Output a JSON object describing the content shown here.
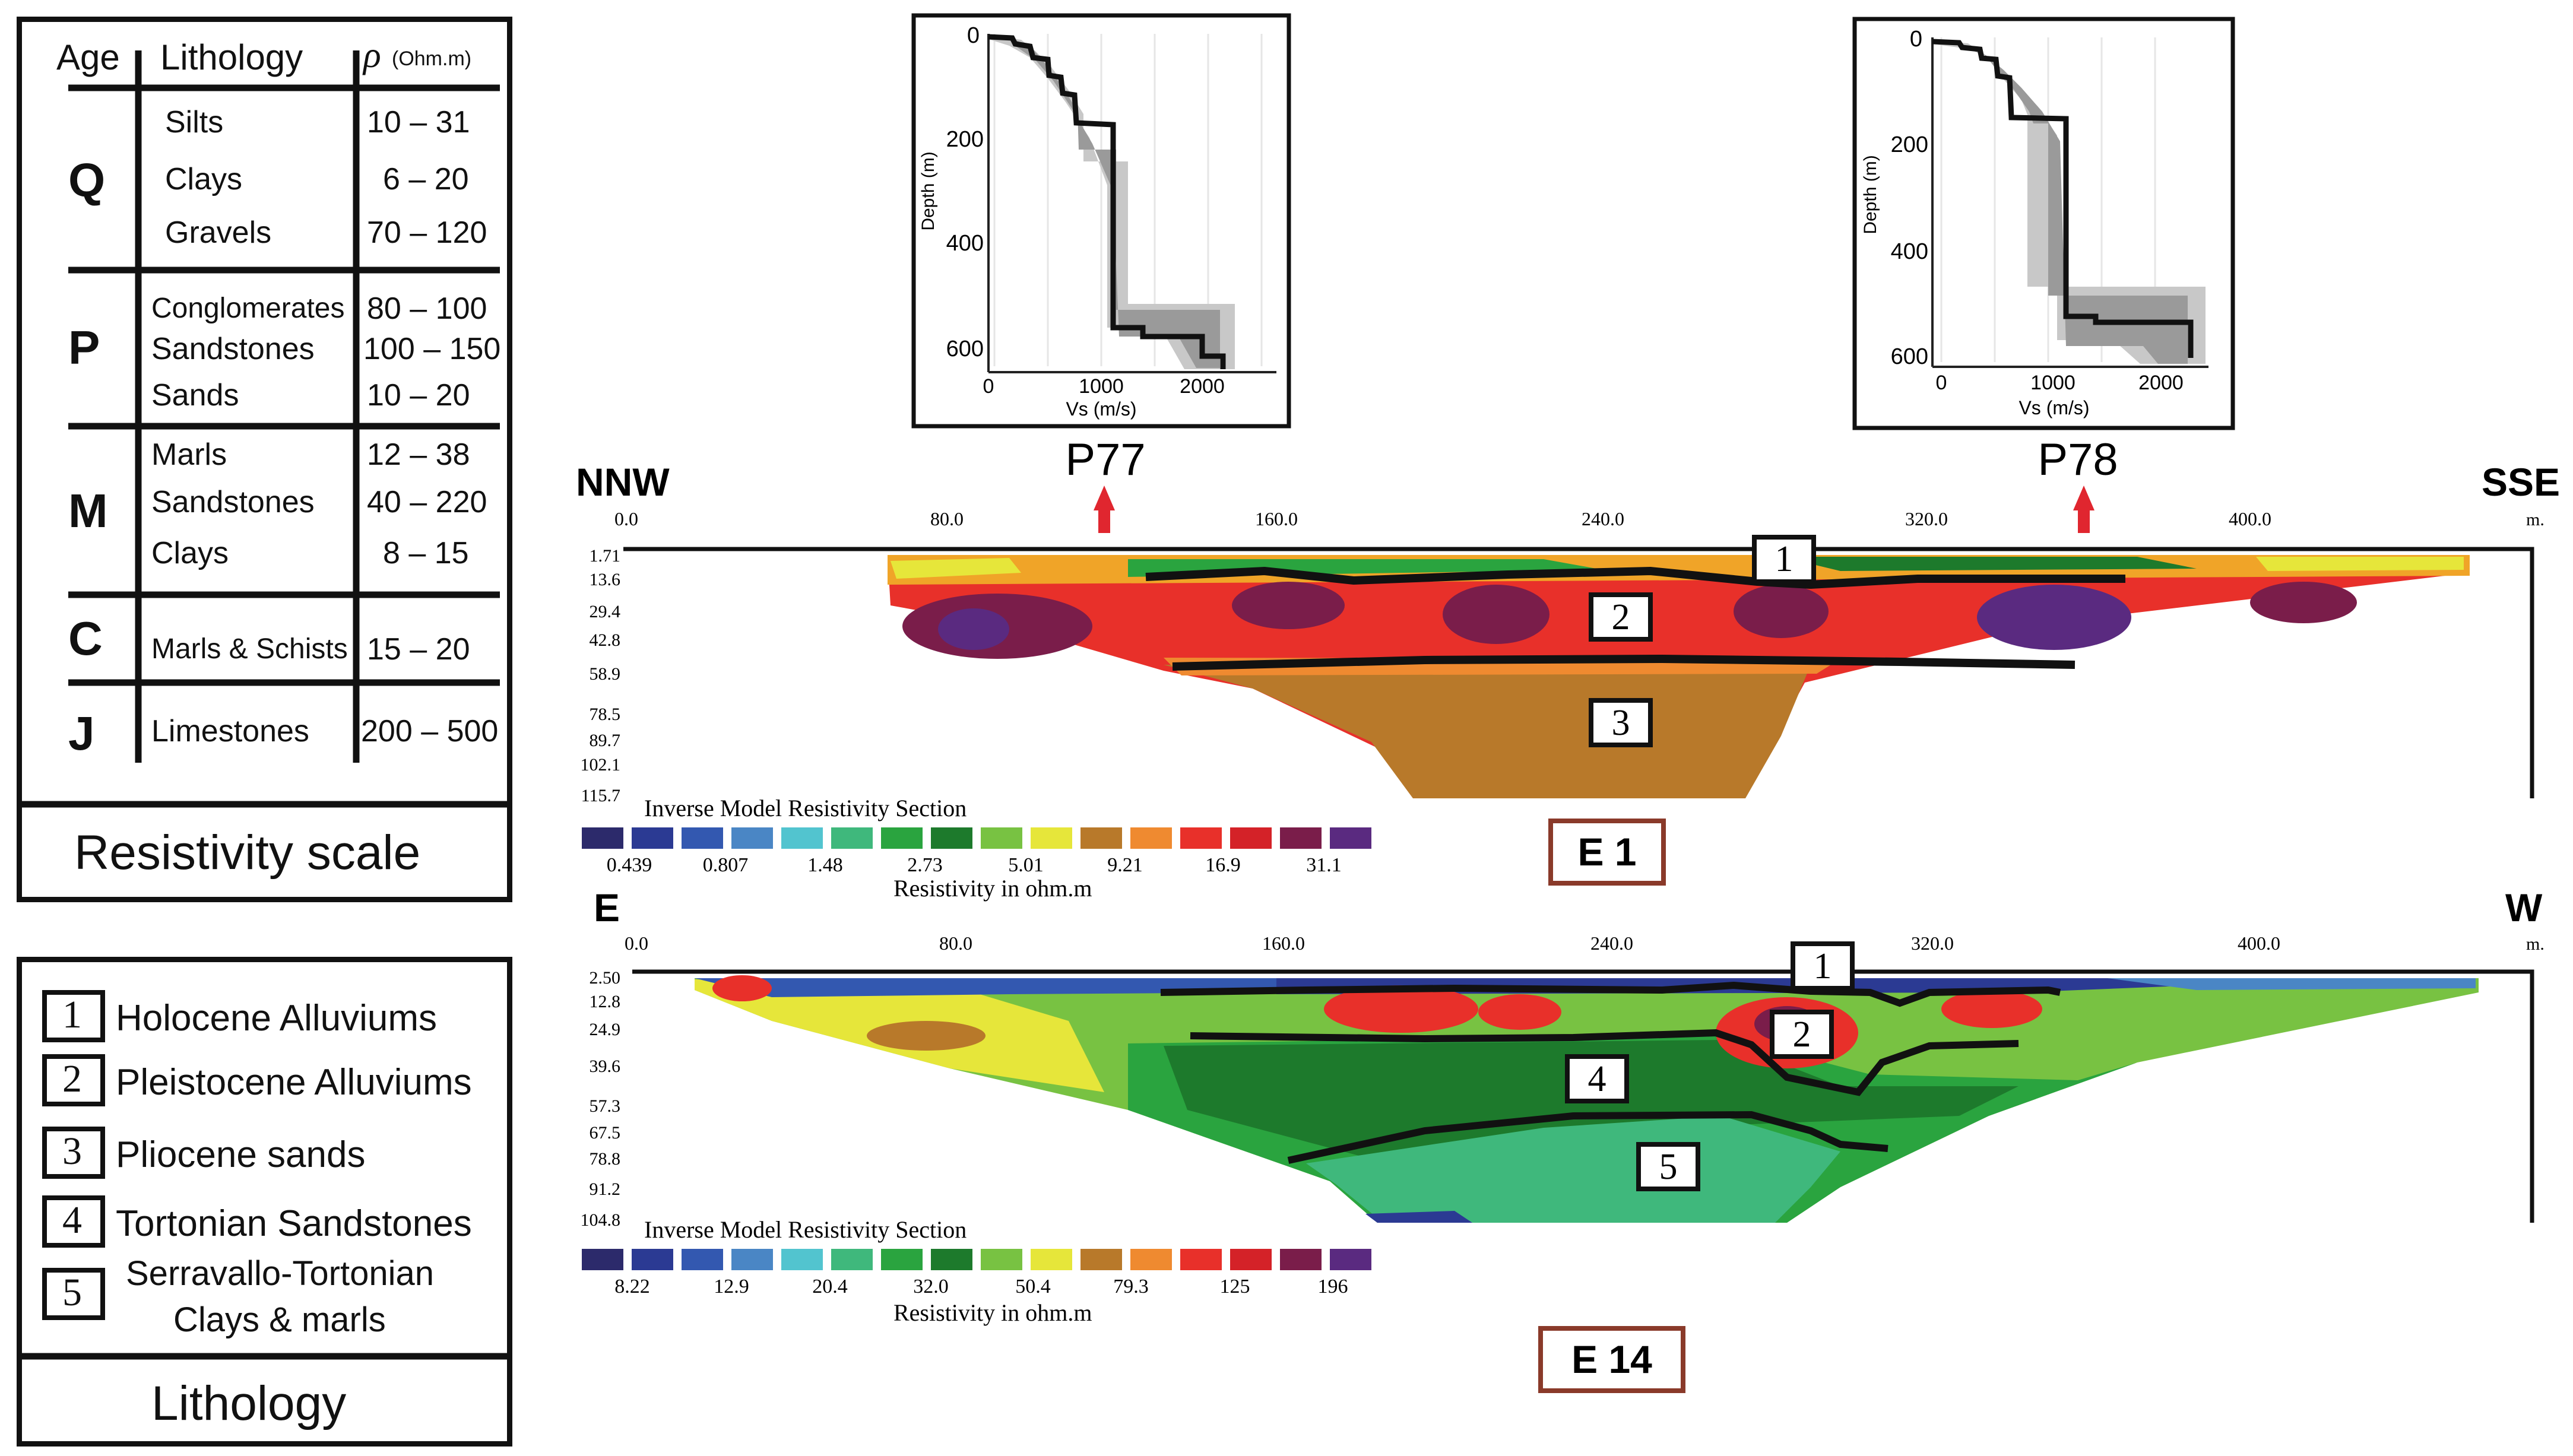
{
  "resistivity_table": {
    "headers": {
      "age": "Age",
      "lithology": "Lithology",
      "rho_symbol": "ρ",
      "rho_unit": "(Ohm.m)"
    },
    "groups": [
      {
        "age": "Q",
        "rows": [
          {
            "lith": "Silts",
            "rho": "10 – 31"
          },
          {
            "lith": "Clays",
            "rho": "6 – 20"
          },
          {
            "lith": "Gravels",
            "rho": "70 – 120"
          }
        ]
      },
      {
        "age": "P",
        "rows": [
          {
            "lith": "Conglomerates",
            "rho": "80 – 100"
          },
          {
            "lith": "Sandstones",
            "rho": "100 – 150"
          },
          {
            "lith": "Sands",
            "rho": "10 – 20"
          }
        ]
      },
      {
        "age": "M",
        "rows": [
          {
            "lith": "Marls",
            "rho": "12 – 38"
          },
          {
            "lith": "Sandstones",
            "rho": "40 – 220"
          },
          {
            "lith": "Clays",
            "rho": "8 – 15"
          }
        ]
      },
      {
        "age": "C",
        "rows": [
          {
            "lith": "Marls & Schists",
            "rho": "15 – 20"
          }
        ]
      },
      {
        "age": "J",
        "rows": [
          {
            "lith": "Limestones",
            "rho": "200 – 500"
          }
        ]
      }
    ],
    "footer": "Resistivity scale"
  },
  "lithology_legend": {
    "items": [
      {
        "num": "1",
        "label": "Holocene Alluviums"
      },
      {
        "num": "2",
        "label": "Pleistocene Alluviums"
      },
      {
        "num": "3",
        "label": "Pliocene sands"
      },
      {
        "num": "4",
        "label": "Tortonian Sandstones"
      },
      {
        "num": "5",
        "label_line1": "Serravallo-Tortonian",
        "label_line2": "Clays & marls"
      }
    ],
    "footer": "Lithology"
  },
  "vs_profiles": [
    {
      "name": "P77",
      "ylabel": "Depth (m)",
      "xlabel": "Vs (m/s)",
      "y_ticks": [
        "0",
        "200",
        "400",
        "600"
      ],
      "x_ticks": [
        "0",
        "1000",
        "2000"
      ]
    },
    {
      "name": "P78",
      "ylabel": "Depth (m)",
      "xlabel": "Vs (m/s)",
      "y_ticks": [
        "0",
        "200",
        "400",
        "600"
      ],
      "x_ticks": [
        "0",
        "1000",
        "2000"
      ]
    }
  ],
  "section_e1": {
    "left_dir": "NNW",
    "right_dir": "SSE",
    "unit": "m.",
    "x_ticks": [
      "0.0",
      "80.0",
      "160.0",
      "240.0",
      "320.0",
      "400.0"
    ],
    "depth_ticks": [
      "1.71",
      "13.6",
      "29.4",
      "42.8",
      "58.9",
      "78.5",
      "89.7",
      "102.1",
      "115.7"
    ],
    "layers": [
      "1",
      "2",
      "3"
    ],
    "colorbar_title": "Inverse Model Resistivity Section",
    "colorbar_values": [
      "0.439",
      "0.807",
      "1.48",
      "2.73",
      "5.01",
      "9.21",
      "16.9",
      "31.1"
    ],
    "colorbar_label": "Resistivity in ohm.m",
    "name": "E 1"
  },
  "section_e14": {
    "left_dir": "E",
    "right_dir": "W",
    "unit": "m.",
    "x_ticks": [
      "0.0",
      "80.0",
      "160.0",
      "240.0",
      "320.0",
      "400.0"
    ],
    "depth_ticks": [
      "2.50",
      "12.8",
      "24.9",
      "39.6",
      "57.3",
      "67.5",
      "78.8",
      "91.2",
      "104.8"
    ],
    "layers": [
      "1",
      "2",
      "4",
      "5"
    ],
    "colorbar_title": "Inverse Model Resistivity Section",
    "colorbar_values": [
      "8.22",
      "12.9",
      "20.4",
      "32.0",
      "50.4",
      "79.3",
      "125",
      "196"
    ],
    "colorbar_label": "Resistivity in ohm.m",
    "name": "E 14"
  },
  "colors": {
    "colorbar": [
      "#2c2a6b",
      "#2b3a93",
      "#3358b0",
      "#4a86c5",
      "#52c4cf",
      "#3fb87c",
      "#2aa43f",
      "#1d7a2c",
      "#78c242",
      "#e6e63a",
      "#b8792a",
      "#ef8a30",
      "#e8302a",
      "#d42228",
      "#7a1d4a",
      "#5a2a80"
    ],
    "marker": "#e0262f",
    "section_name_border": "#8a3a2a"
  }
}
